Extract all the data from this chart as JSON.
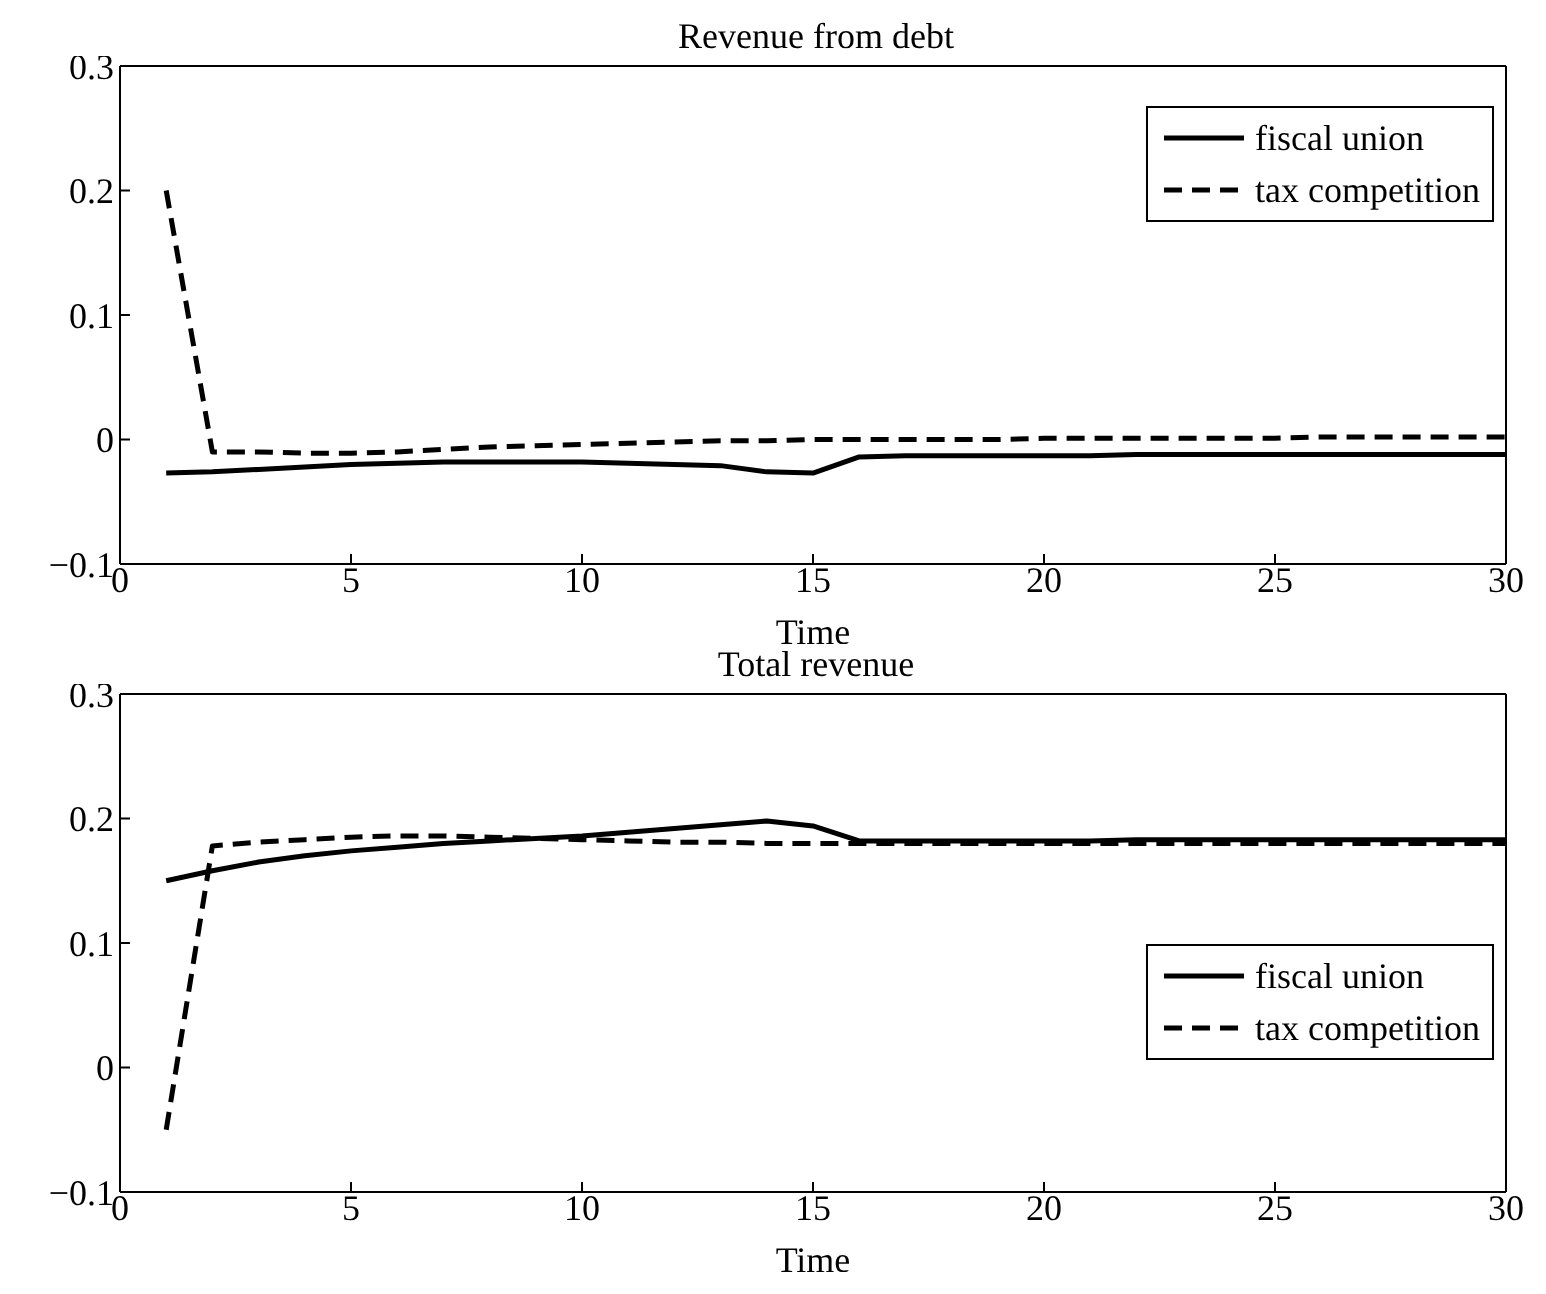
{
  "chart_data": [
    {
      "type": "line",
      "title": "Revenue from debt",
      "xlabel": "Time",
      "x": [
        1,
        2,
        3,
        4,
        5,
        6,
        7,
        8,
        9,
        10,
        11,
        12,
        13,
        14,
        15,
        16,
        17,
        18,
        19,
        20,
        21,
        22,
        23,
        24,
        25,
        26,
        27,
        28,
        29,
        30
      ],
      "xlim": [
        0,
        30
      ],
      "xticks": [
        0,
        5,
        10,
        15,
        20,
        25,
        30
      ],
      "ylim": [
        -0.1,
        0.3
      ],
      "yticks": [
        {
          "value": -0.1,
          "label": "−0.1"
        },
        0,
        0.1,
        0.2,
        0.3
      ],
      "legend": "top right",
      "marker": "none",
      "grid": false,
      "series": [
        {
          "name": "fiscal union",
          "color": "#000000",
          "line_style": "solid",
          "values": [
            -0.027,
            -0.026,
            -0.024,
            -0.022,
            -0.02,
            -0.019,
            -0.018,
            -0.018,
            -0.018,
            -0.018,
            -0.019,
            -0.02,
            -0.021,
            -0.026,
            -0.027,
            -0.014,
            -0.013,
            -0.013,
            -0.013,
            -0.013,
            -0.013,
            -0.012,
            -0.012,
            -0.012,
            -0.012,
            -0.012,
            -0.012,
            -0.012,
            -0.012,
            -0.012
          ]
        },
        {
          "name": "tax competition",
          "color": "#000000",
          "line_style": "dashed",
          "values": [
            0.2,
            -0.01,
            -0.01,
            -0.011,
            -0.011,
            -0.01,
            -0.008,
            -0.006,
            -0.005,
            -0.004,
            -0.003,
            -0.002,
            -0.001,
            -0.001,
            0,
            0,
            0,
            0,
            0,
            0.001,
            0.001,
            0.001,
            0.001,
            0.001,
            0.001,
            0.002,
            0.002,
            0.002,
            0.002,
            0.002
          ]
        }
      ]
    },
    {
      "type": "line",
      "title": "Total revenue",
      "xlabel": "Time",
      "x": [
        1,
        2,
        3,
        4,
        5,
        6,
        7,
        8,
        9,
        10,
        11,
        12,
        13,
        14,
        15,
        16,
        17,
        18,
        19,
        20,
        21,
        22,
        23,
        24,
        25,
        26,
        27,
        28,
        29,
        30
      ],
      "xlim": [
        0,
        30
      ],
      "xticks": [
        0,
        5,
        10,
        15,
        20,
        25,
        30
      ],
      "ylim": [
        -0.1,
        0.3
      ],
      "yticks": [
        {
          "value": -0.1,
          "label": "−0.1"
        },
        0,
        0.1,
        0.2,
        0.3
      ],
      "legend": "bottom right",
      "marker": "none",
      "grid": false,
      "series": [
        {
          "name": "fiscal union",
          "color": "#000000",
          "line_style": "solid",
          "values": [
            0.15,
            0.158,
            0.165,
            0.17,
            0.174,
            0.177,
            0.18,
            0.182,
            0.184,
            0.186,
            0.189,
            0.192,
            0.195,
            0.198,
            0.194,
            0.182,
            0.182,
            0.182,
            0.182,
            0.182,
            0.182,
            0.183,
            0.183,
            0.183,
            0.183,
            0.183,
            0.183,
            0.183,
            0.183,
            0.183
          ]
        },
        {
          "name": "tax competition",
          "color": "#000000",
          "line_style": "dashed",
          "values": [
            -0.05,
            0.178,
            0.181,
            0.183,
            0.185,
            0.186,
            0.186,
            0.185,
            0.184,
            0.183,
            0.182,
            0.181,
            0.181,
            0.18,
            0.18,
            0.18,
            0.18,
            0.18,
            0.18,
            0.18,
            0.18,
            0.18,
            0.18,
            0.18,
            0.18,
            0.18,
            0.18,
            0.18,
            0.18,
            0.18
          ]
        }
      ]
    }
  ]
}
